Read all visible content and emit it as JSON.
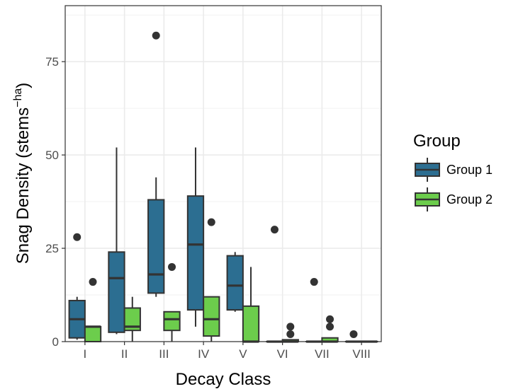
{
  "chart_data": {
    "type": "boxplot",
    "title": "",
    "xlabel": "Decay Class",
    "ylabel": "Snag Density (stems",
    "ylabel_sup": "−ha",
    "ylabel_close": ")",
    "categories": [
      "I",
      "II",
      "III",
      "IV",
      "V",
      "VI",
      "VII",
      "VIII"
    ],
    "ylim": [
      0,
      90
    ],
    "yticks": [
      0,
      25,
      50,
      75
    ],
    "grid": true,
    "legend": {
      "title": "Group",
      "placement": "right"
    },
    "series": [
      {
        "name": "Group 1",
        "color": "#2c6e91",
        "boxes": [
          {
            "min": 0.5,
            "q1": 1,
            "median": 6,
            "q3": 11,
            "max": 12,
            "outliers": [
              28
            ]
          },
          {
            "min": 2,
            "q1": 2.5,
            "median": 17,
            "q3": 24,
            "max": 52,
            "outliers": []
          },
          {
            "min": 12,
            "q1": 13,
            "median": 18,
            "q3": 38,
            "max": 44,
            "outliers": [
              82
            ]
          },
          {
            "min": 4,
            "q1": 8.5,
            "median": 26,
            "q3": 39,
            "max": 52,
            "outliers": []
          },
          {
            "min": 8,
            "q1": 8.5,
            "median": 15,
            "q3": 23,
            "max": 24,
            "outliers": []
          },
          {
            "min": 0,
            "q1": 0,
            "median": 0,
            "q3": 0,
            "max": 0,
            "outliers": [
              30
            ]
          },
          {
            "min": 0,
            "q1": 0,
            "median": 0,
            "q3": 0,
            "max": 0,
            "outliers": [
              16
            ]
          },
          {
            "min": 0,
            "q1": 0,
            "median": 0,
            "q3": 0,
            "max": 0,
            "outliers": [
              2
            ]
          }
        ]
      },
      {
        "name": "Group 2",
        "color": "#6ccd4c",
        "boxes": [
          {
            "min": 0,
            "q1": 0,
            "median": 4,
            "q3": 4,
            "max": 4,
            "outliers": [
              16
            ]
          },
          {
            "min": 0,
            "q1": 3,
            "median": 4,
            "q3": 9,
            "max": 12,
            "outliers": []
          },
          {
            "min": 0,
            "q1": 3,
            "median": 6,
            "q3": 8,
            "max": 8,
            "outliers": [
              20
            ]
          },
          {
            "min": 0,
            "q1": 1.5,
            "median": 6,
            "q3": 12,
            "max": 12,
            "outliers": [
              32
            ]
          },
          {
            "min": 0,
            "q1": 0,
            "median": 0,
            "q3": 9.5,
            "max": 20,
            "outliers": []
          },
          {
            "min": 0,
            "q1": 0,
            "median": 0,
            "q3": 0.5,
            "max": 0.5,
            "outliers": [
              2,
              4
            ]
          },
          {
            "min": 0,
            "q1": 0,
            "median": 0,
            "q3": 1,
            "max": 1,
            "outliers": [
              4,
              6
            ]
          },
          {
            "min": 0,
            "q1": 0,
            "median": 0,
            "q3": 0,
            "max": 0,
            "outliers": []
          }
        ]
      }
    ]
  }
}
